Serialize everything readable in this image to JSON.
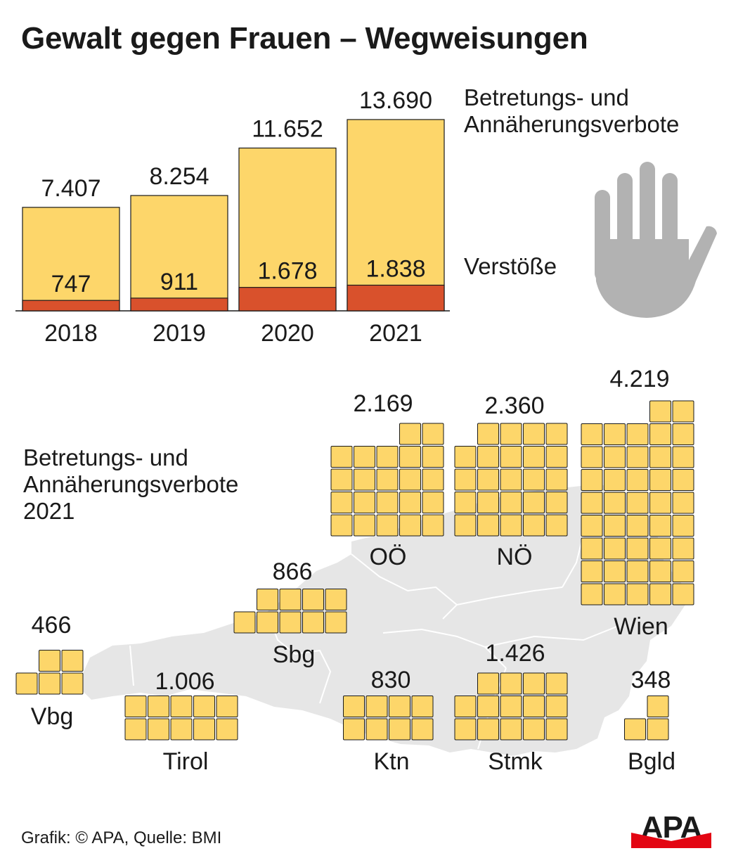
{
  "title": "Gewalt gegen Frauen – Wegweisungen",
  "legend": {
    "bans_label": "Betretungs- und\nAnnäherungsverbote",
    "violations_label": "Verstöße"
  },
  "map_legend": "Betretungs- und\nAnnäherungsverbote\n2021",
  "source": "Grafik: © APA, Quelle: BMI",
  "logo_text": "APA",
  "colors": {
    "bans": "#FDD66A",
    "violations": "#D9512C",
    "outline": "#1a1a1a",
    "map": "#E6E6E6",
    "hand": "#B2B2B2",
    "text": "#1a1a1a",
    "logo_red": "#E30613"
  },
  "icons": {
    "hand": "stop-hand-icon"
  },
  "chart_data": [
    {
      "type": "bar",
      "title": "Gewalt gegen Frauen – Wegweisungen",
      "categories": [
        "2018",
        "2019",
        "2020",
        "2021"
      ],
      "series": [
        {
          "name": "Betretungs- und Annäherungsverbote",
          "values": [
            7407,
            8254,
            11652,
            13690
          ],
          "labels": [
            "7.407",
            "8.254",
            "11.652",
            "13.690"
          ]
        },
        {
          "name": "Verstöße",
          "values": [
            747,
            911,
            1678,
            1838
          ],
          "labels": [
            "747",
            "911",
            "1.678",
            "1.838"
          ]
        }
      ],
      "ylim": [
        0,
        13690
      ]
    },
    {
      "type": "pictogram",
      "title": "Betretungs- und Annäherungsverbote 2021",
      "unit_per_square": 100,
      "regions": [
        {
          "name": "OÖ",
          "value": 2169,
          "label": "2.169",
          "squares": 22
        },
        {
          "name": "NÖ",
          "value": 2360,
          "label": "2.360",
          "squares": 24
        },
        {
          "name": "Wien",
          "value": 4219,
          "label": "4.219",
          "squares": 42
        },
        {
          "name": "Sbg",
          "value": 866,
          "label": "866",
          "squares": 9
        },
        {
          "name": "Vbg",
          "value": 466,
          "label": "466",
          "squares": 5
        },
        {
          "name": "Tirol",
          "value": 1006,
          "label": "1.006",
          "squares": 10
        },
        {
          "name": "Ktn",
          "value": 830,
          "label": "830",
          "squares": 8
        },
        {
          "name": "Stmk",
          "value": 1426,
          "label": "1.426",
          "squares": 14
        },
        {
          "name": "Bgld",
          "value": 348,
          "label": "348",
          "squares": 3
        }
      ]
    }
  ]
}
